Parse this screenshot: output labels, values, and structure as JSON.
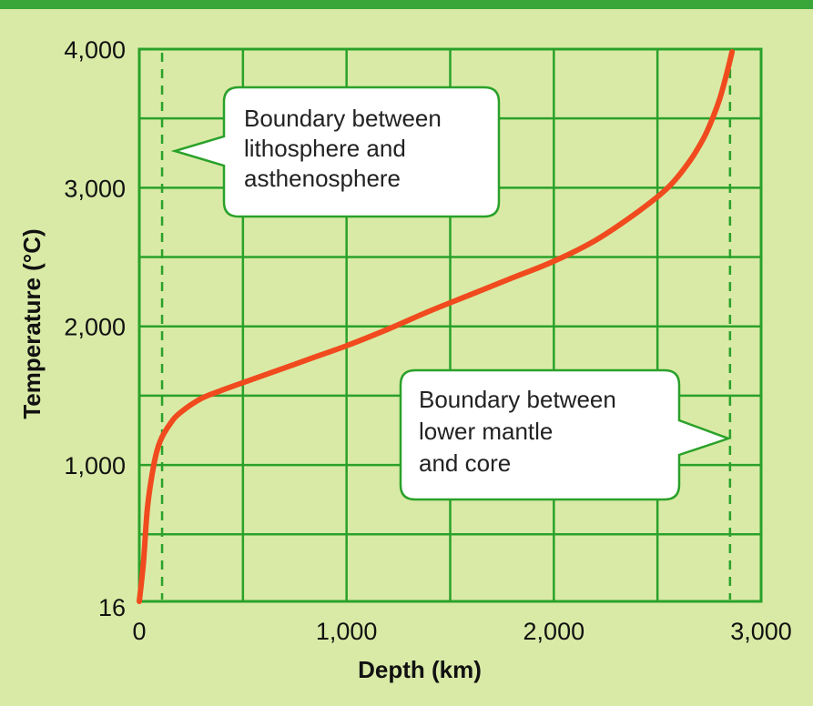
{
  "chart_data": {
    "type": "line",
    "xlabel": "Depth (km)",
    "ylabel": "Temperature (°C)",
    "xlim": [
      0,
      3000
    ],
    "ylim": [
      16,
      4000
    ],
    "x_ticks": [
      0,
      1000,
      2000,
      3000
    ],
    "x_tick_labels": [
      "0",
      "1,000",
      "2,000",
      "3,000"
    ],
    "y_ticks": [
      16,
      1000,
      2000,
      3000,
      4000
    ],
    "y_tick_labels": [
      "16",
      "1,000",
      "2,000",
      "3,000",
      "4,000"
    ],
    "grid": true,
    "series": [
      {
        "color": "#f04a1e",
        "x": [
          0,
          20,
          40,
          70,
          100,
          150,
          200,
          300,
          400,
          550,
          700,
          850,
          1000,
          1200,
          1400,
          1600,
          1800,
          2000,
          2200,
          2400,
          2550,
          2650,
          2720,
          2760,
          2800,
          2830,
          2860
        ],
        "y": [
          16,
          300,
          700,
          1000,
          1170,
          1300,
          1380,
          1480,
          1540,
          1620,
          1700,
          1780,
          1860,
          1980,
          2110,
          2230,
          2350,
          2470,
          2620,
          2820,
          3000,
          3180,
          3350,
          3480,
          3640,
          3800,
          3980
        ]
      }
    ],
    "reference_lines": [
      {
        "axis": "x",
        "value": 110,
        "style": "dashed",
        "color": "#2aa12a"
      },
      {
        "axis": "x",
        "value": 2850,
        "style": "dashed",
        "color": "#2aa12a"
      }
    ],
    "annotations": [
      {
        "lines": [
          "Boundary between",
          "lithosphere and",
          "asthenosphere"
        ],
        "points_to": "left"
      },
      {
        "lines": [
          "Boundary between",
          "lower mantle",
          "and core"
        ],
        "points_to": "right"
      }
    ]
  },
  "colors": {
    "background": "#d9eaa6",
    "grid": "#2aa12a",
    "curve": "#f04a1e",
    "callout_fill": "#ffffff",
    "callout_border": "#2aa12a"
  }
}
